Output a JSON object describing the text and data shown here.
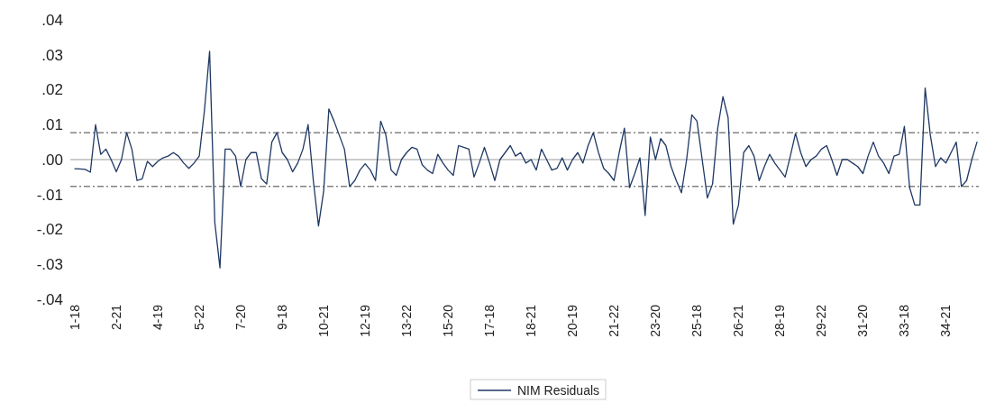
{
  "chart_data": {
    "type": "line",
    "categories": [
      "1-18",
      null,
      null,
      null,
      null,
      null,
      null,
      null,
      "2-21",
      null,
      null,
      null,
      null,
      null,
      null,
      null,
      "4-19",
      null,
      null,
      null,
      null,
      null,
      null,
      null,
      "5-22",
      null,
      null,
      null,
      null,
      null,
      null,
      null,
      "7-20",
      null,
      null,
      null,
      null,
      null,
      null,
      null,
      "9-18",
      null,
      null,
      null,
      null,
      null,
      null,
      null,
      "10-21",
      null,
      null,
      null,
      null,
      null,
      null,
      null,
      "12-19",
      null,
      null,
      null,
      null,
      null,
      null,
      null,
      "13-22",
      null,
      null,
      null,
      null,
      null,
      null,
      null,
      "15-20",
      null,
      null,
      null,
      null,
      null,
      null,
      null,
      "17-18",
      null,
      null,
      null,
      null,
      null,
      null,
      null,
      "18-21",
      null,
      null,
      null,
      null,
      null,
      null,
      null,
      "20-19",
      null,
      null,
      null,
      null,
      null,
      null,
      null,
      "21-22",
      null,
      null,
      null,
      null,
      null,
      null,
      null,
      "23-20",
      null,
      null,
      null,
      null,
      null,
      null,
      null,
      "25-18",
      null,
      null,
      null,
      null,
      null,
      null,
      null,
      "26-21",
      null,
      null,
      null,
      null,
      null,
      null,
      null,
      "28-19",
      null,
      null,
      null,
      null,
      null,
      null,
      null,
      "29-22",
      null,
      null,
      null,
      null,
      null,
      null,
      null,
      "31-20",
      null,
      null,
      null,
      null,
      null,
      null,
      null,
      "33-18",
      null,
      null,
      null,
      null,
      null,
      null,
      null,
      "34-21",
      null,
      null,
      null,
      null,
      null,
      null
    ],
    "series": [
      {
        "name": "NIM Residuals",
        "color": "#1f3864",
        "values": [
          -0.0026,
          -0.0027,
          -0.0028,
          -0.0036,
          0.01,
          0.0015,
          0.003,
          0.0,
          -0.0035,
          0.0,
          0.0077,
          0.003,
          -0.006,
          -0.0055,
          -0.0005,
          -0.002,
          -0.0005,
          0.0005,
          0.001,
          0.002,
          0.001,
          -0.001,
          -0.0025,
          -0.001,
          0.001,
          0.014,
          0.031,
          -0.018,
          -0.031,
          0.003,
          0.003,
          0.001,
          -0.0077,
          0.0,
          0.002,
          0.002,
          -0.0055,
          -0.007,
          0.005,
          0.0077,
          0.002,
          0.0,
          -0.0035,
          -0.001,
          0.003,
          0.01,
          -0.006,
          -0.019,
          -0.009,
          0.0145,
          0.011,
          0.007,
          0.003,
          -0.0077,
          -0.006,
          -0.003,
          -0.0012,
          -0.003,
          -0.006,
          0.011,
          0.007,
          -0.003,
          -0.0045,
          0.0,
          0.002,
          0.0035,
          0.003,
          -0.0015,
          -0.003,
          -0.004,
          0.0015,
          -0.001,
          -0.003,
          -0.0045,
          0.004,
          0.0035,
          0.003,
          -0.005,
          -0.001,
          0.0035,
          -0.001,
          -0.006,
          0.0,
          0.002,
          0.004,
          0.001,
          0.002,
          -0.001,
          0.0,
          -0.003,
          0.003,
          0.0,
          -0.003,
          -0.0025,
          0.0005,
          -0.003,
          0.0,
          0.002,
          -0.001,
          0.004,
          0.0077,
          0.002,
          -0.0025,
          -0.004,
          -0.006,
          0.002,
          0.009,
          -0.008,
          -0.004,
          0.0005,
          -0.016,
          0.0065,
          0.0,
          0.006,
          0.004,
          -0.002,
          -0.006,
          -0.0095,
          0.0,
          0.0128,
          0.011,
          0.0,
          -0.011,
          -0.007,
          0.009,
          0.018,
          0.012,
          -0.0185,
          -0.013,
          0.002,
          0.004,
          0.001,
          -0.006,
          -0.002,
          0.0015,
          -0.001,
          -0.003,
          -0.005,
          0.001,
          0.0075,
          0.002,
          -0.002,
          0.0,
          0.001,
          0.003,
          0.004,
          0.0,
          -0.0045,
          0.0,
          0.0,
          -0.001,
          -0.002,
          -0.004,
          0.001,
          0.005,
          0.001,
          -0.001,
          -0.004,
          0.001,
          0.0015,
          0.0095,
          -0.008,
          -0.013,
          -0.013,
          0.0205,
          0.007,
          -0.002,
          0.0005,
          -0.001,
          0.002,
          0.005,
          -0.0077,
          -0.006,
          0.0,
          0.005
        ]
      }
    ],
    "ylim": [
      -0.04,
      0.04
    ],
    "yticks": [
      {
        "value": -0.04,
        "label": "-.04"
      },
      {
        "value": -0.03,
        "label": "-.03"
      },
      {
        "value": -0.02,
        "label": "-.02"
      },
      {
        "value": -0.01,
        "label": "-.01"
      },
      {
        "value": 0,
        "label": ".00"
      },
      {
        "value": 0.01,
        "label": ".01"
      },
      {
        "value": 0.02,
        "label": ".02"
      },
      {
        "value": 0.03,
        "label": ".03"
      },
      {
        "value": 0.04,
        "label": ".04"
      }
    ],
    "ref_lines": [
      {
        "axis": "y",
        "value": 0,
        "color": "#999999",
        "line_style": "solid"
      },
      {
        "axis": "y",
        "value": 0.0077,
        "color": "#444444",
        "line_style": "dashed"
      },
      {
        "axis": "y",
        "value": -0.0077,
        "color": "#444444",
        "line_style": "dashed"
      }
    ],
    "legend": "bottom",
    "marker": "none",
    "line_style": "solid",
    "grid": false
  }
}
